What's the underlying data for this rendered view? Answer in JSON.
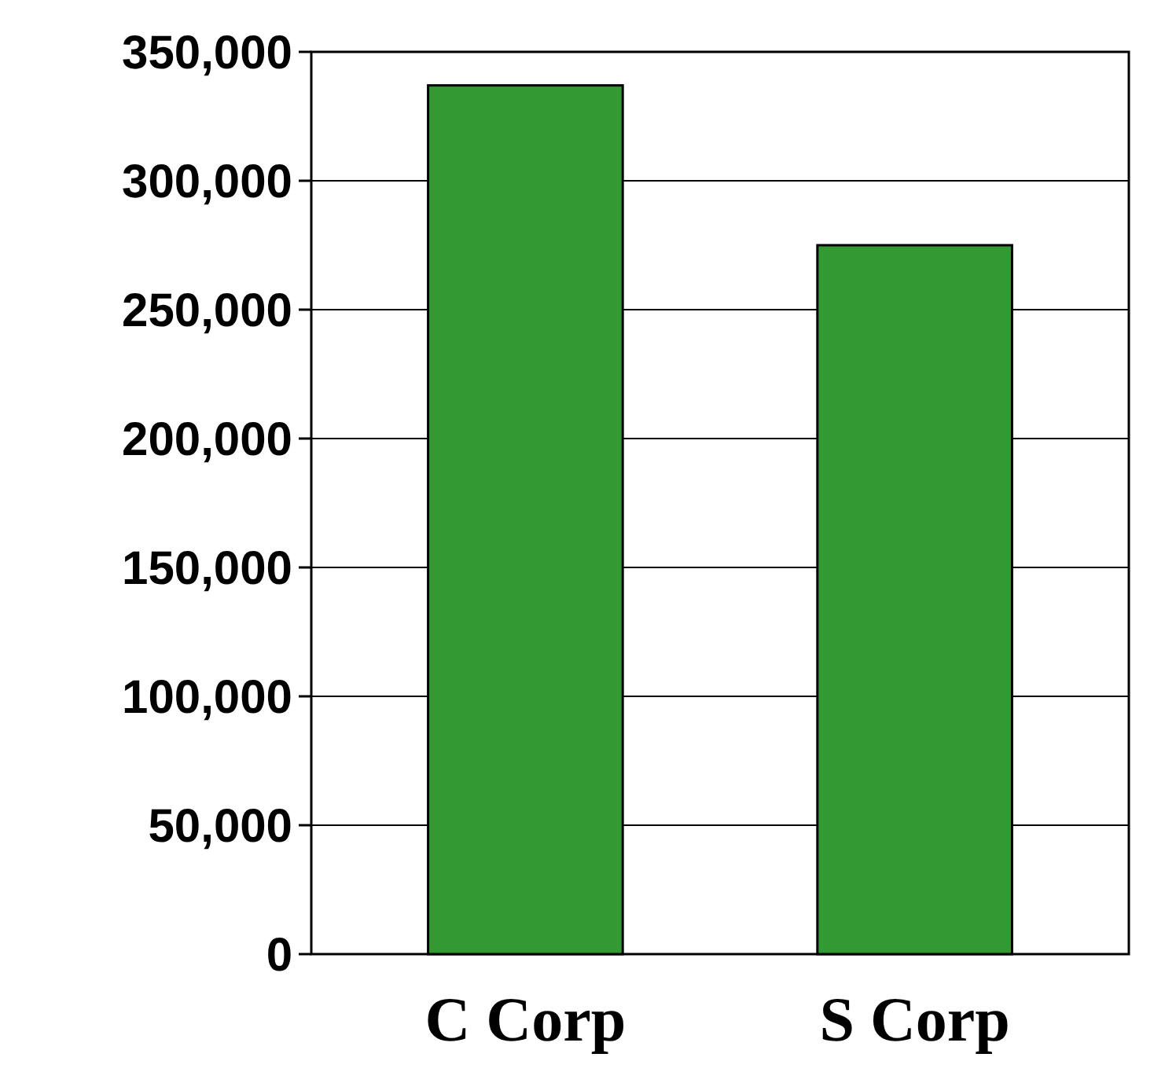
{
  "chart_data": {
    "type": "bar",
    "categories": [
      "C Corp",
      "S Corp"
    ],
    "values": [
      337000,
      275000
    ],
    "color": "#339933",
    "ylim": [
      0,
      350000
    ],
    "yticks": [
      {
        "value": 0,
        "label": "0"
      },
      {
        "value": 50000,
        "label": "50,000"
      },
      {
        "value": 100000,
        "label": "100,000"
      },
      {
        "value": 150000,
        "label": "150,000"
      },
      {
        "value": 200000,
        "label": "200,000"
      },
      {
        "value": 250000,
        "label": "250,000"
      },
      {
        "value": 300000,
        "label": "300,000"
      },
      {
        "value": 350000,
        "label": "350,000"
      }
    ],
    "grid": "y"
  }
}
